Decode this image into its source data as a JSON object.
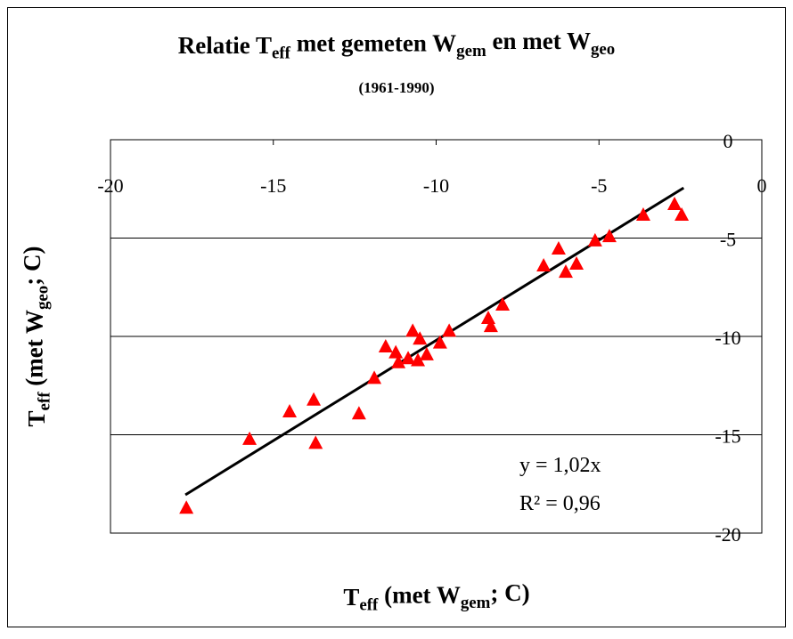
{
  "chart_data": {
    "type": "scatter",
    "title": [
      {
        "text": "Relatie T",
        "sub": false
      },
      {
        "text": "eff",
        "sub": true
      },
      {
        "text": " met gemeten W",
        "sub": false
      },
      {
        "text": "gem",
        "sub": true
      },
      {
        "text": " en met W",
        "sub": false
      },
      {
        "text": "geo",
        "sub": true
      }
    ],
    "subtitle": "(1961-1990)",
    "x_label": [
      {
        "text": "T",
        "sub": false
      },
      {
        "text": "eff",
        "sub": true
      },
      {
        "text": " (met W",
        "sub": false
      },
      {
        "text": "gem",
        "sub": true
      },
      {
        "text": "; C)",
        "sub": false
      }
    ],
    "y_label": [
      {
        "text": "T",
        "sub": false
      },
      {
        "text": "eff",
        "sub": true
      },
      {
        "text": " (met W",
        "sub": false
      },
      {
        "text": "geo",
        "sub": true
      },
      {
        "text": "; C)",
        "sub": false
      }
    ],
    "series": [
      {
        "name": "Teff",
        "color": "#ff0000",
        "x": [
          -17.67,
          -15.73,
          -14.5,
          -13.76,
          -13.7,
          -12.37,
          -11.9,
          -11.55,
          -11.24,
          -11.16,
          -10.86,
          -10.72,
          -10.56,
          -10.5,
          -10.29,
          -9.88,
          -9.6,
          -8.4,
          -8.32,
          -7.96,
          -6.7,
          -6.24,
          -6.02,
          -5.69,
          -5.12,
          -4.68,
          -3.64,
          -2.68,
          -2.46
        ],
        "values": [
          -18.7,
          -15.2,
          -13.8,
          -13.2,
          -15.4,
          -13.9,
          -12.1,
          -10.5,
          -10.8,
          -11.3,
          -11.1,
          -9.7,
          -11.2,
          -10.1,
          -10.9,
          -10.3,
          -9.7,
          -9.05,
          -9.46,
          -8.37,
          -6.38,
          -5.52,
          -6.7,
          -6.29,
          -5.11,
          -4.89,
          -3.8,
          -3.26,
          -3.8
        ]
      }
    ],
    "trendline": {
      "x": [
        -17.7,
        -2.4
      ],
      "slope": 1.02,
      "color": "#000000",
      "equation": "y = 1,02x",
      "r2": "R² = 0,96"
    },
    "xlim": [
      -20,
      0
    ],
    "ylim": [
      -20,
      0
    ],
    "xticks": [
      -20,
      -15,
      -10,
      -5,
      0
    ],
    "yticks": [
      0,
      -5,
      -10,
      -15,
      -20
    ],
    "grid": true
  }
}
